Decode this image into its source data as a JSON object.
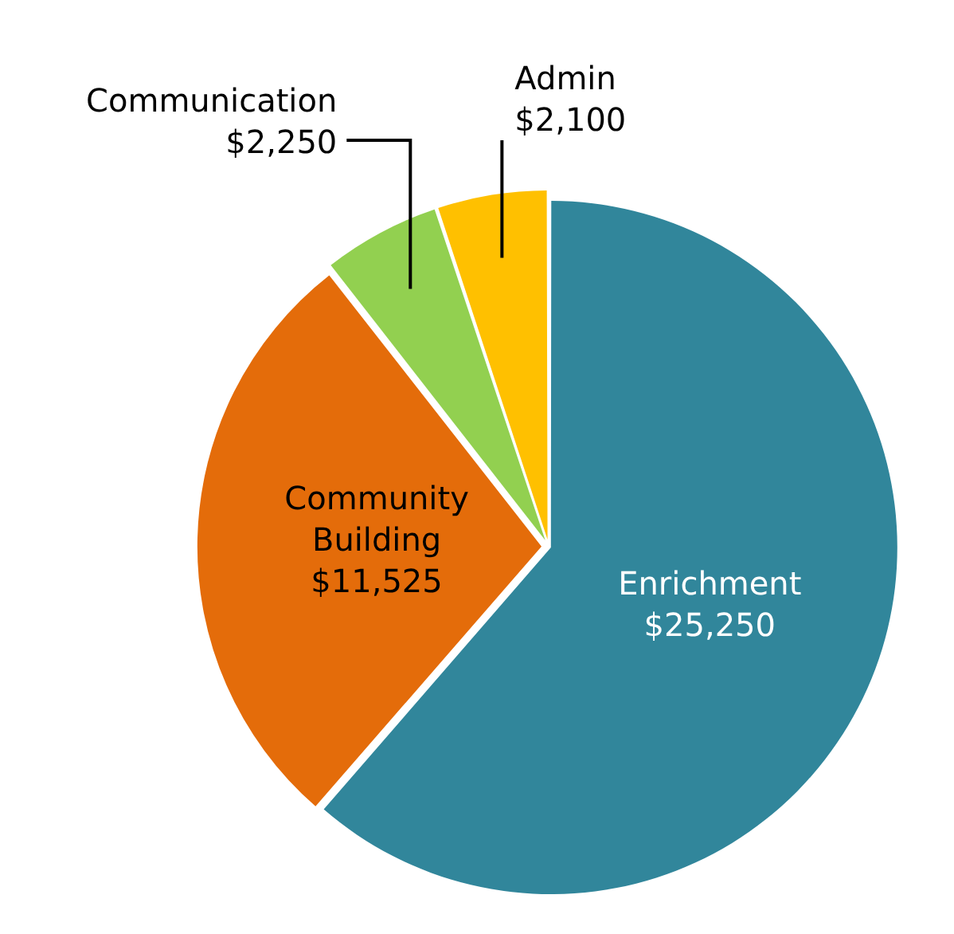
{
  "chart_data": {
    "type": "pie",
    "categories": [
      "Enrichment",
      "Community Building",
      "Communication",
      "Admin"
    ],
    "values": [
      25250,
      11525,
      2250,
      2100
    ],
    "colors": [
      "#31869b",
      "#e46c0a",
      "#92d050",
      "#ffc000"
    ],
    "value_labels": [
      "$25,250",
      "$11,525",
      "$2,250",
      "$2,100"
    ],
    "legend": false
  }
}
